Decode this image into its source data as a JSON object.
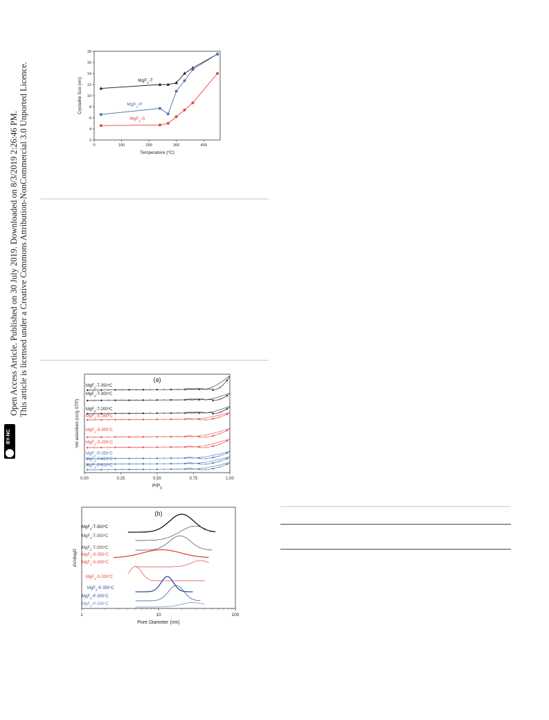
{
  "sidebar": {
    "line1": "Open Access Article. Published on 30 July 2019. Downloaded on 8/3/2019 2:26:46 PM.",
    "line2": "This article is licensed under a Creative Commons Attribution-NonCommercial 3.0 Unported Licence.",
    "badge": "BY-NC",
    "cc": "cc"
  },
  "chart_data": [
    {
      "type": "line",
      "xlabel": "Temperature (°C)",
      "ylabel": "Crystallite Size (nm)",
      "xlim": [
        0,
        460
      ],
      "ylim": [
        2,
        18
      ],
      "xticks": [
        "0",
        "100",
        "200",
        "300",
        "400"
      ],
      "yticks": [
        "2",
        "4",
        "6",
        "8",
        "10",
        "12",
        "14",
        "16",
        "18"
      ],
      "series": [
        {
          "name": "MgF2-T",
          "color": "#222222",
          "marker": "triangle",
          "x": [
            25,
            240,
            270,
            300,
            330,
            360,
            450
          ],
          "y": [
            11.3,
            12.0,
            12.0,
            12.3,
            14.0,
            15.0,
            17.5
          ]
        },
        {
          "name": "MgF2-P",
          "color": "#4a6fb5",
          "marker": "circle",
          "x": [
            25,
            240,
            270,
            300,
            330,
            360,
            450
          ],
          "y": [
            6.6,
            7.7,
            6.7,
            10.8,
            12.7,
            14.7,
            17.5
          ]
        },
        {
          "name": "MgF2-S",
          "color": "#e8413d",
          "marker": "circle",
          "x": [
            25,
            240,
            270,
            300,
            330,
            360,
            450
          ],
          "y": [
            4.6,
            4.7,
            5.0,
            6.2,
            7.4,
            8.7,
            14.0
          ]
        }
      ]
    },
    {
      "type": "line",
      "panel": "(a)",
      "xlabel": "P/P0",
      "ylabel": "Vol adsorbed (cc/g STP)",
      "xlim": [
        0,
        1.0
      ],
      "xticks": [
        "0.00",
        "0.25",
        "0.50",
        "0.75",
        "1.00"
      ],
      "series": [
        {
          "name": "MgF2-T-350°C",
          "color": "#222222"
        },
        {
          "name": "MgF2-T-300°C",
          "color": "#222222"
        },
        {
          "name": "MgF2-T-200°C",
          "color": "#222222"
        },
        {
          "name": "MgF2-S-350°C",
          "color": "#e8413d"
        },
        {
          "name": "MgF2-S-300°C",
          "color": "#e8413d"
        },
        {
          "name": "MgF2-S-200°C",
          "color": "#e8413d"
        },
        {
          "name": "MgF2-P-350°C",
          "color": "#4a6fb5"
        },
        {
          "name": "MgF2-P-300°C",
          "color": "#4a6fb5"
        },
        {
          "name": "MgF2-P-200°C",
          "color": "#4a6fb5"
        }
      ]
    },
    {
      "type": "line",
      "panel": "(b)",
      "xlabel": "Pore Diameter (nm)",
      "ylabel": "dV/dlogD",
      "xscale": "log",
      "xlim": [
        1,
        100
      ],
      "xticks": [
        "1",
        "10",
        "100"
      ],
      "series": [
        {
          "name": "MgF2-T-350°C",
          "color": "#111111",
          "peak_nm": 20,
          "width": 0.16,
          "amp": 1.0
        },
        {
          "name": "MgF2-T-300°C",
          "color": "#444444",
          "peak_nm": 30,
          "width": 0.2,
          "amp": 0.8
        },
        {
          "name": "MgF2-T-200°C",
          "color": "#444444",
          "peak_nm": 19,
          "width": 0.14,
          "amp": 0.8
        },
        {
          "name": "MgF2-S-350°C",
          "color": "#e8413d",
          "peak_nm": 11,
          "width": 0.25,
          "amp": 0.45
        },
        {
          "name": "MgF2-S-300°C",
          "color": "#e8413d",
          "peak_nm": 35,
          "width": 0.12,
          "amp": 0.35
        },
        {
          "name": "MgF2-S-200°C",
          "color": "#e8413d",
          "peak_nm": 5,
          "width": 0.08,
          "amp": 0.8
        },
        {
          "name": "MgF2-P-350°C",
          "color": "#2b4d9c",
          "peak_nm": 13,
          "width": 0.08,
          "amp": 0.85
        },
        {
          "name": "MgF2-P-300°C",
          "color": "#2b4d9c",
          "peak_nm": 17,
          "width": 0.1,
          "amp": 0.85
        },
        {
          "name": "MgF2-P-200°C",
          "color": "#6a86c2",
          "peak_nm": 28,
          "width": 0.15,
          "amp": 0.25
        }
      ]
    }
  ]
}
